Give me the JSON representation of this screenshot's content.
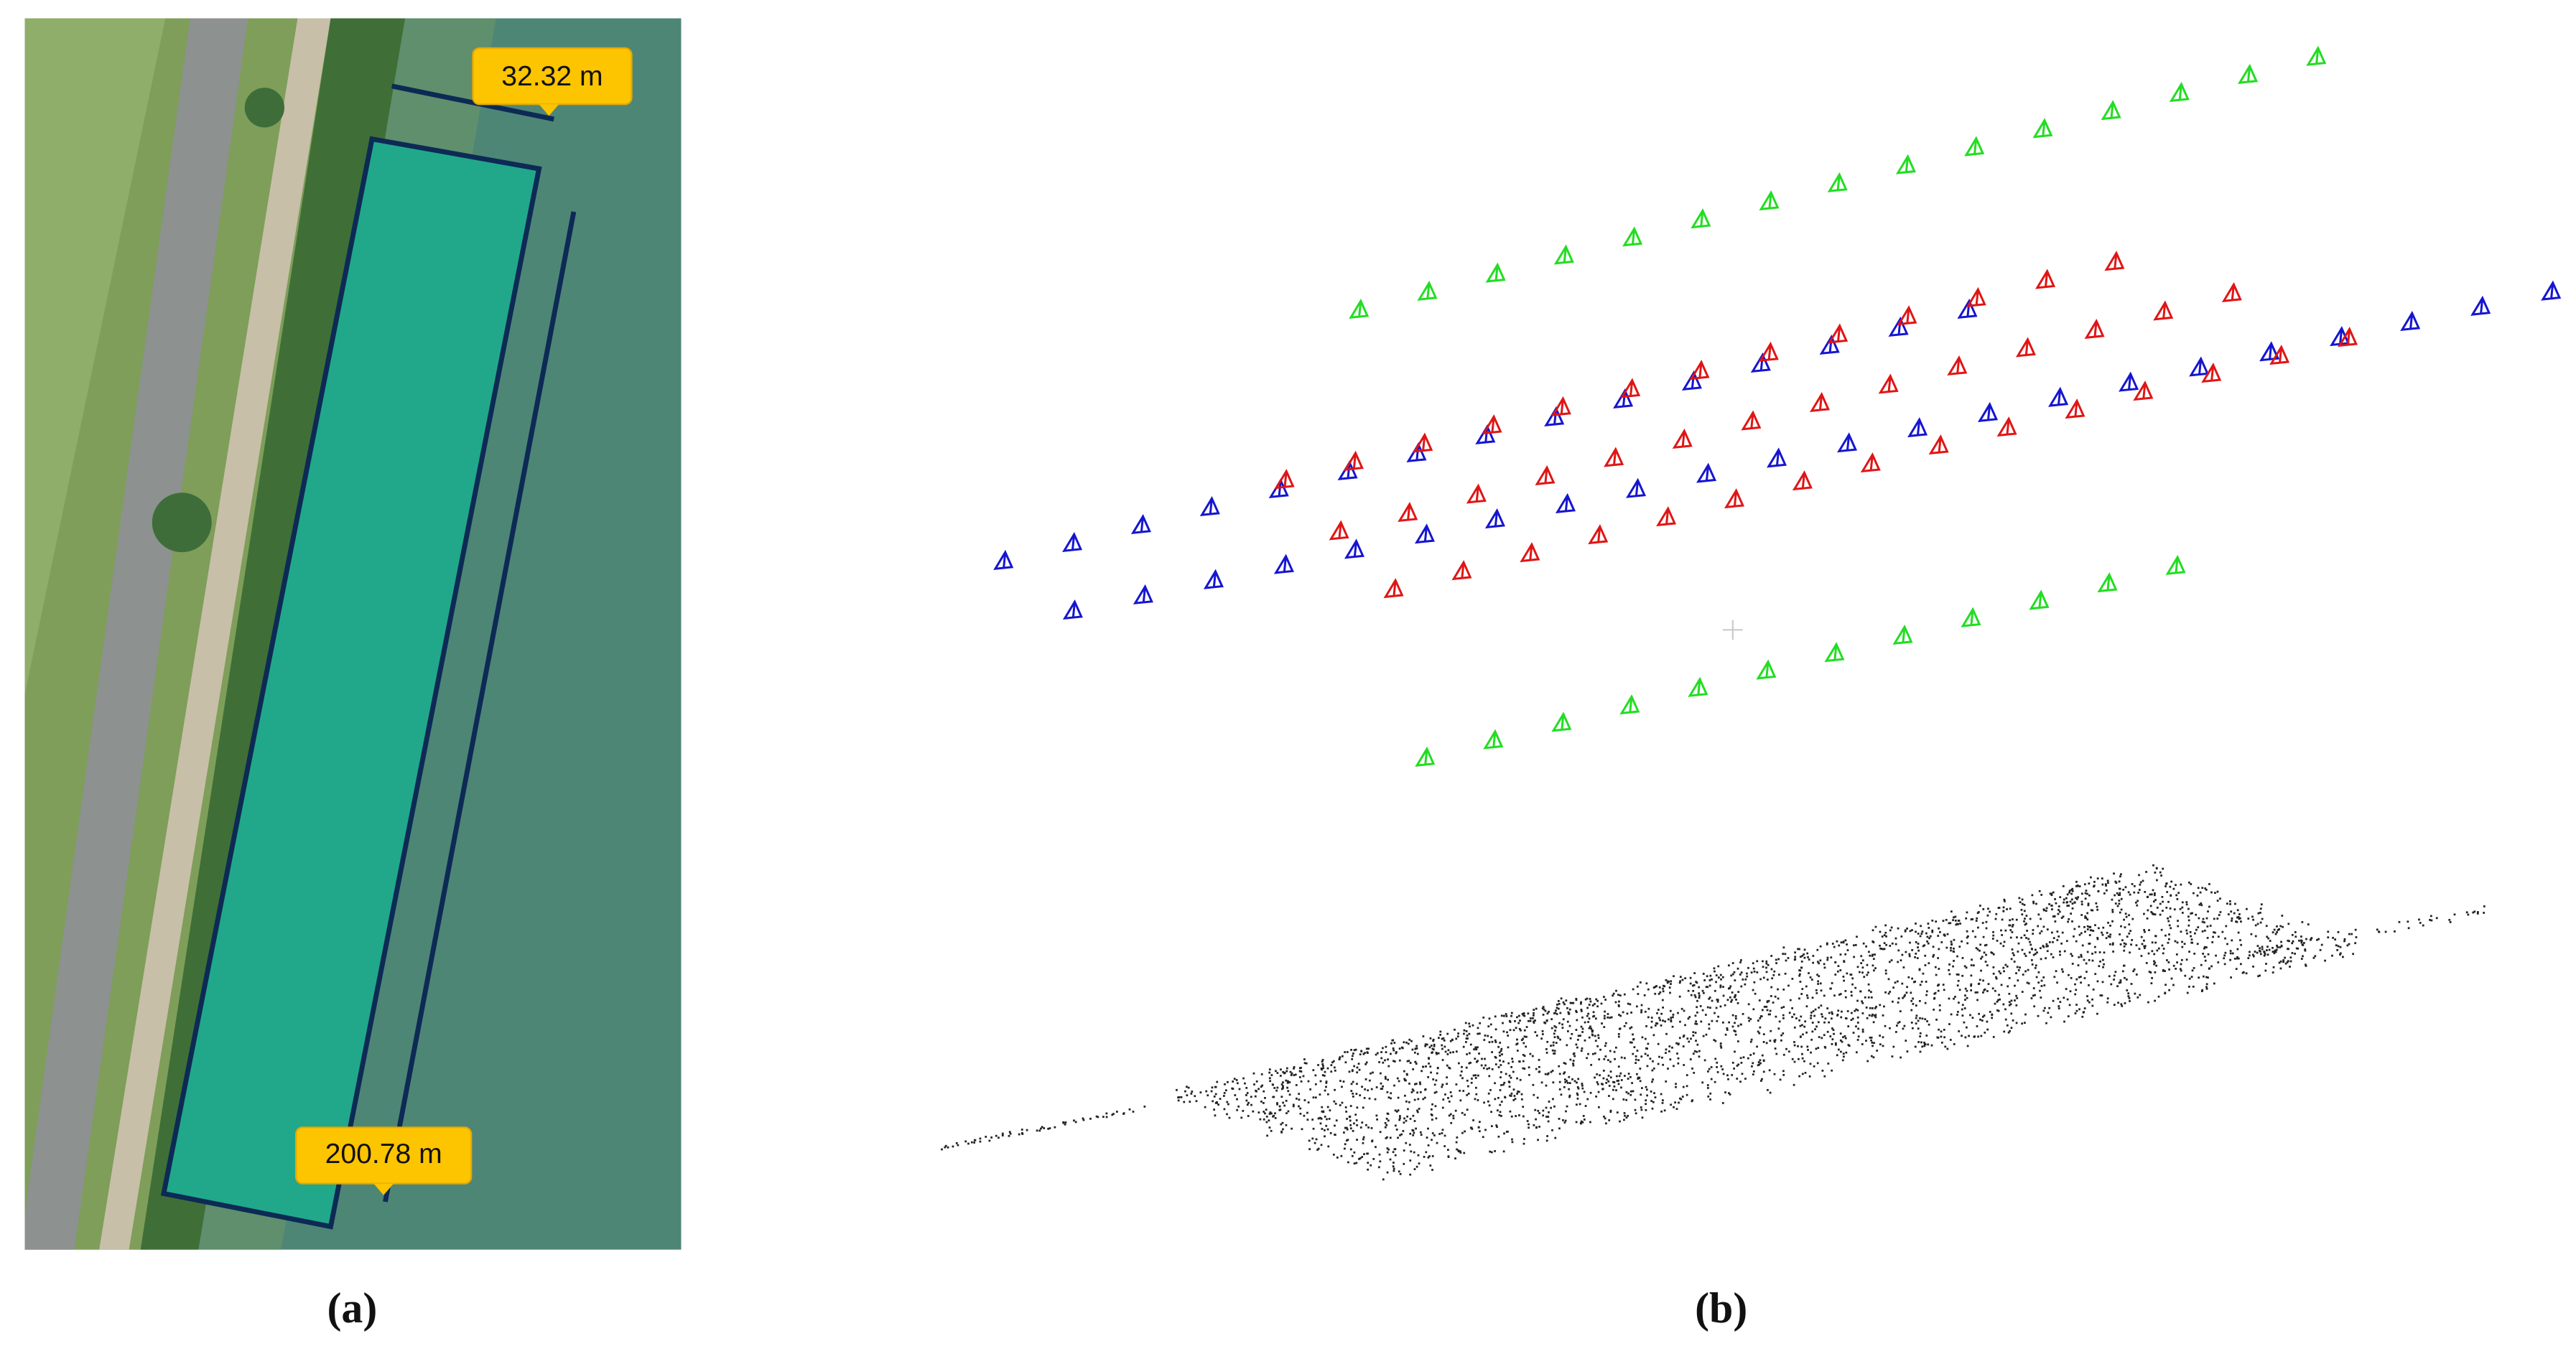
{
  "panel_a": {
    "labels": [
      "32.32 m",
      "200.78 m"
    ],
    "caption": "(a)"
  },
  "panel_b": {
    "caption": "(b)"
  }
}
